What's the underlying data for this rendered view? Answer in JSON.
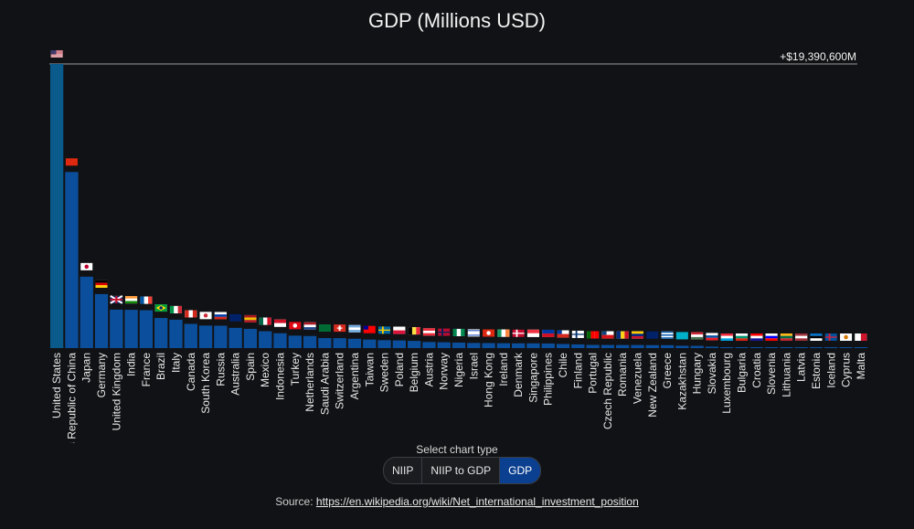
{
  "title": "GDP (Millions USD)",
  "selector": {
    "label": "Select chart type",
    "options": [
      "NIIP",
      "NIIP to GDP",
      "GDP"
    ],
    "selected": "GDP"
  },
  "source": {
    "prefix": "Source: ",
    "link_text": "https://en.wikipedia.org/wiki/Net_international_investment_position"
  },
  "chart_data": {
    "type": "bar",
    "title": "GDP (Millions USD)",
    "reference_label": "+$19,390,600M",
    "ylim": [
      0,
      19390600
    ],
    "colors": {
      "top_bar": "#0b5a8c",
      "bar": "#0b4f9c",
      "background": "#111215",
      "axis": "#9a9a9a"
    },
    "categories": [
      "United States",
      "People's Republic of China",
      "Japan",
      "Germany",
      "United Kingdom",
      "India",
      "France",
      "Brazil",
      "Italy",
      "Canada",
      "South Korea",
      "Russia",
      "Australia",
      "Spain",
      "Mexico",
      "Indonesia",
      "Turkey",
      "Netherlands",
      "Saudi Arabia",
      "Switzerland",
      "Argentina",
      "Taiwan",
      "Sweden",
      "Poland",
      "Belgium",
      "Austria",
      "Norway",
      "Nigeria",
      "Israel",
      "Hong Kong",
      "Ireland",
      "Denmark",
      "Singapore",
      "Philippines",
      "Chile",
      "Finland",
      "Portugal",
      "Czech Republic",
      "Romania",
      "Venezuela",
      "New Zealand",
      "Greece",
      "Kazakhstan",
      "Hungary",
      "Slovakia",
      "Luxembourg",
      "Bulgaria",
      "Croatia",
      "Slovenia",
      "Lithuania",
      "Latvia",
      "Estonia",
      "Iceland",
      "Cyprus",
      "Malta"
    ],
    "values": [
      19390600,
      12014610,
      4872135,
      3684816,
      2624529,
      2611012,
      2583560,
      2054969,
      1937894,
      1652412,
      1538030,
      1527469,
      1379548,
      1314314,
      1149236,
      1015411,
      849480,
      825745,
      683827,
      678575,
      637717,
      579302,
      538575,
      524886,
      492681,
      416845,
      398832,
      376284,
      350609,
      341659,
      333994,
      324484,
      323907,
      313419,
      277042,
      251885,
      217571,
      213189,
      211315,
      210085,
      201485,
      200690,
      159407,
      152284,
      95938,
      62393,
      56943,
      54516,
      48868,
      47263,
      30319,
      25973,
      23909,
      21651,
      12011
    ],
    "flags": [
      "US",
      "CN",
      "JP",
      "DE",
      "GB",
      "IN",
      "FR",
      "BR",
      "IT",
      "CA",
      "KR",
      "RU",
      "AU",
      "ES",
      "MX",
      "ID",
      "TR",
      "NL",
      "SA",
      "CH",
      "AR",
      "TW",
      "SE",
      "PL",
      "BE",
      "AT",
      "NO",
      "NG",
      "IL",
      "HK",
      "IE",
      "DK",
      "SG",
      "PH",
      "CL",
      "FI",
      "PT",
      "CZ",
      "RO",
      "VE",
      "NZ",
      "GR",
      "KZ",
      "HU",
      "SK",
      "LU",
      "BG",
      "HR",
      "SI",
      "LT",
      "LV",
      "EE",
      "IS",
      "CY",
      "MT"
    ]
  }
}
